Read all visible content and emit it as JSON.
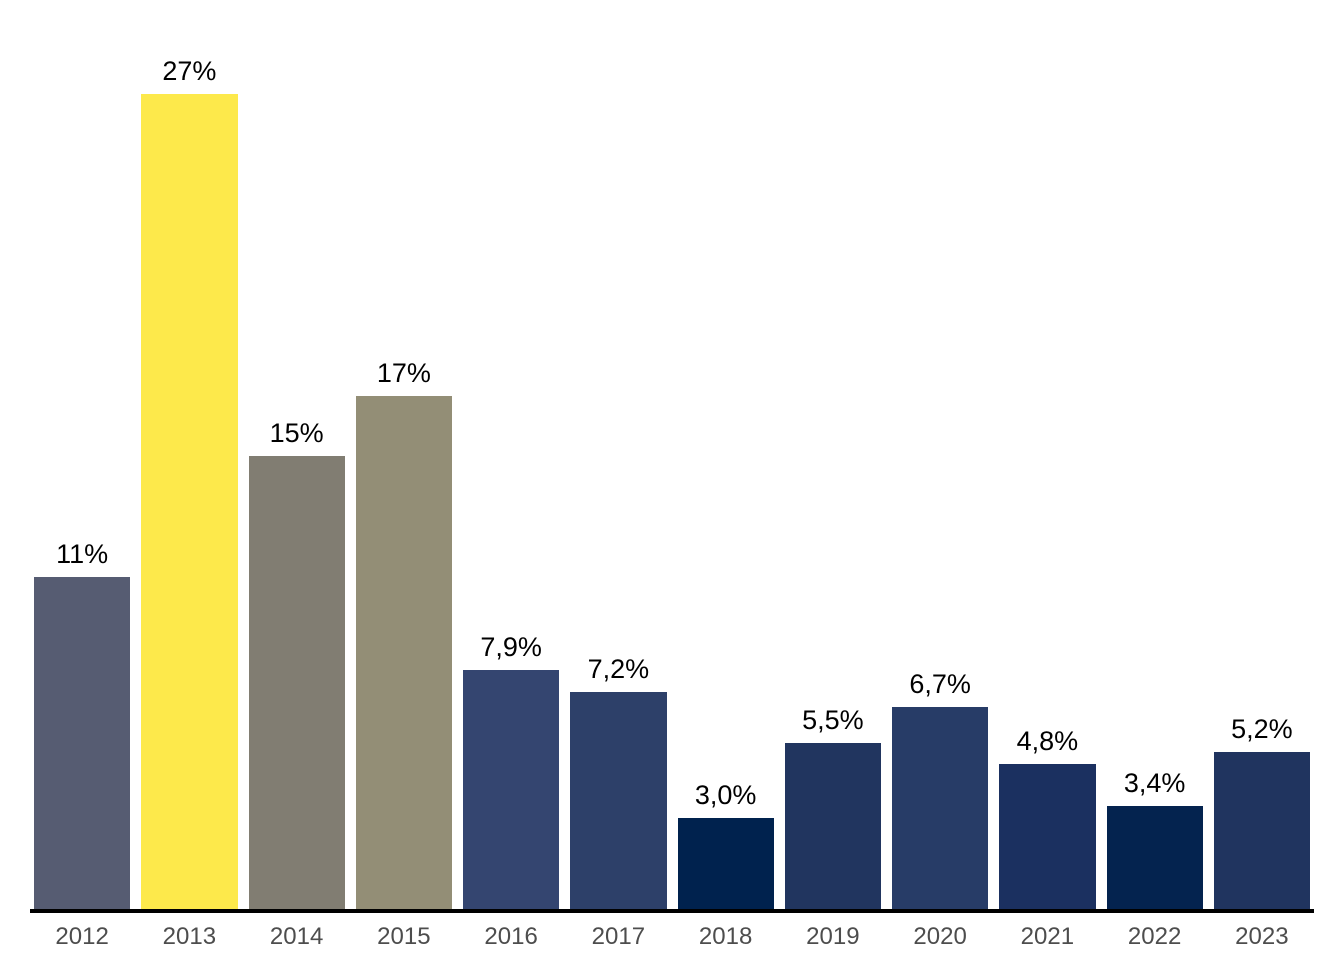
{
  "chart_data": {
    "type": "bar",
    "title": "",
    "xlabel": "",
    "ylabel": "",
    "ylim": [
      0,
      30
    ],
    "grid": false,
    "legend": null,
    "categories": [
      "2012",
      "2013",
      "2014",
      "2015",
      "2016",
      "2017",
      "2018",
      "2019",
      "2020",
      "2021",
      "2022",
      "2023"
    ],
    "values": [
      11,
      27,
      15,
      17,
      7.9,
      7.2,
      3.0,
      5.5,
      6.7,
      4.8,
      3.4,
      5.2
    ],
    "value_labels": [
      "11%",
      "27%",
      "15%",
      "17%",
      "7,9%",
      "7,2%",
      "3,0%",
      "5,5%",
      "6,7%",
      "4,8%",
      "3,4%",
      "5,2%"
    ],
    "bar_colors": [
      "#565c72",
      "#fde94b",
      "#817d72",
      "#938e76",
      "#344570",
      "#2d4069",
      "#00224e",
      "#21355f",
      "#273c67",
      "#1b3060",
      "#04234f",
      "#20345f"
    ],
    "axis_line_color": "#000000",
    "tick_label_color": "#4d4d4d",
    "value_label_color": "#000000",
    "background_color": "#ffffff"
  }
}
